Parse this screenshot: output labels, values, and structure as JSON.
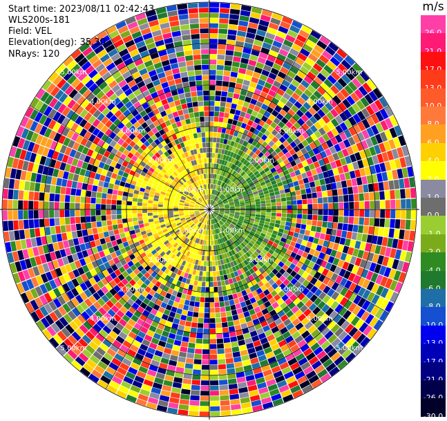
{
  "header": {
    "start_time": "Start time: 2023/08/11 02:42:43",
    "station": "WLS200s-181",
    "field": "Field: VEL",
    "elevation": "Elevation(deg): 35.30",
    "nrays": "NRays: 120"
  },
  "colorbar": {
    "unit": "m/s",
    "levels": [
      {
        "label": "26.0",
        "color": "#ff3fa8"
      },
      {
        "label": "21.0",
        "color": "#ff1a75"
      },
      {
        "label": "17.0",
        "color": "#ff1010"
      },
      {
        "label": "13.0",
        "color": "#ff3b1a"
      },
      {
        "label": "10.0",
        "color": "#ff5a2a"
      },
      {
        "label": "8.0",
        "color": "#ff7a3a"
      },
      {
        "label": "6.0",
        "color": "#ffa020"
      },
      {
        "label": "4.0",
        "color": "#ffd000"
      },
      {
        "label": "2.0",
        "color": "#ffff00"
      },
      {
        "label": "1.0",
        "color": "#8a8aa0"
      },
      {
        "label": "0.0",
        "color": "#6e6e6e"
      },
      {
        "label": "-1.0",
        "color": "#9acd32"
      },
      {
        "label": "-2.0",
        "color": "#7aab1a"
      },
      {
        "label": "-4.0",
        "color": "#2e8b22"
      },
      {
        "label": "-6.0",
        "color": "#1f7a2e"
      },
      {
        "label": "-8.0",
        "color": "#1e6ea8"
      },
      {
        "label": "-10.0",
        "color": "#1450d0"
      },
      {
        "label": "-13.0",
        "color": "#0000ee"
      },
      {
        "label": "-17.0",
        "color": "#0000b8"
      },
      {
        "label": "-21.0",
        "color": "#000080"
      },
      {
        "label": "-26.0",
        "color": "#00004a"
      },
      {
        "label": "-30.0",
        "color": "#000028"
      }
    ]
  },
  "range_ring_labels": [
    "1.00km",
    "2.00km",
    "3.00km",
    "4.00km",
    "5.00km"
  ]
}
